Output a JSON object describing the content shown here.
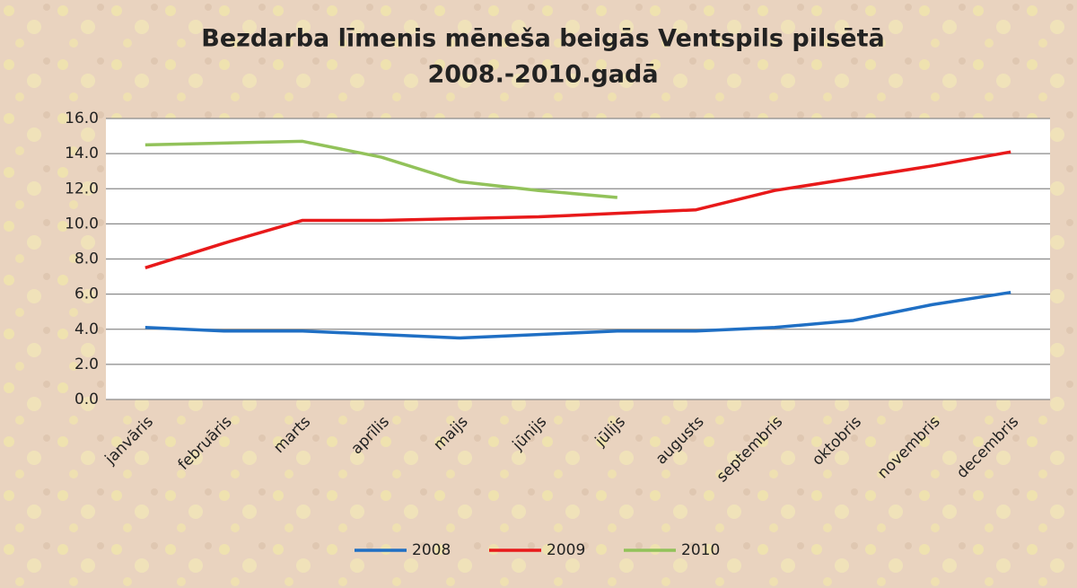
{
  "chart_data": {
    "type": "line",
    "title": [
      "Bezdarba līmenis mēneša beigās Ventspils pilsētā",
      "2008.-2010.gadā"
    ],
    "categories": [
      "janvāris",
      "februāris",
      "marts",
      "aprīlis",
      "maijs",
      "jūnijs",
      "jūlijs",
      "augusts",
      "septembris",
      "oktobris",
      "novembris",
      "decembris"
    ],
    "series": [
      {
        "name": "2008",
        "color": "#1f6fc4",
        "values": [
          4.1,
          3.9,
          3.9,
          3.7,
          3.5,
          3.7,
          3.9,
          3.9,
          4.1,
          4.5,
          5.4,
          6.1
        ]
      },
      {
        "name": "2009",
        "color": "#e8191a",
        "values": [
          7.5,
          8.9,
          10.2,
          10.2,
          10.3,
          10.4,
          10.6,
          10.8,
          11.9,
          12.6,
          13.3,
          14.1
        ]
      },
      {
        "name": "2010",
        "color": "#92c25a",
        "values": [
          14.5,
          14.6,
          14.7,
          13.8,
          12.4,
          11.9,
          11.5,
          null,
          null,
          null,
          null,
          null
        ]
      }
    ],
    "ylim": [
      0,
      16
    ],
    "yticks": [
      {
        "value": 0,
        "label": "0.0"
      },
      {
        "value": 2,
        "label": "2.0"
      },
      {
        "value": 4,
        "label": "4.0"
      },
      {
        "value": 6,
        "label": "6.0"
      },
      {
        "value": 8,
        "label": "8.0"
      },
      {
        "value": 10,
        "label": "10.0"
      },
      {
        "value": 12,
        "label": "12.0"
      },
      {
        "value": 14,
        "label": "14.0"
      },
      {
        "value": 16,
        "label": "16.0"
      }
    ],
    "grid": true,
    "legend": "bottom"
  }
}
